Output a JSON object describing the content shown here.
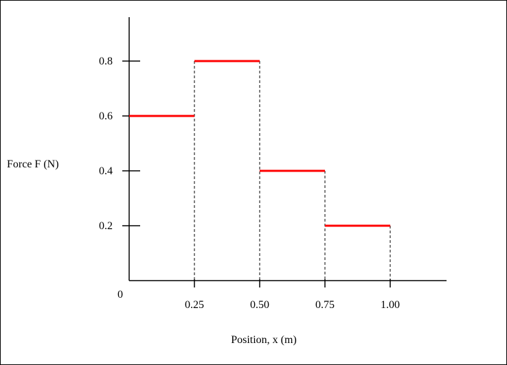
{
  "chart_data": {
    "type": "line",
    "subtype": "step",
    "title": "",
    "xlabel": "Position, x (m)",
    "ylabel": "Force F (N)",
    "origin_label": "0",
    "xlim": [
      0,
      1.2
    ],
    "ylim": [
      0,
      1.0
    ],
    "x_ticks": [
      {
        "value": 0.25,
        "label": "0.25"
      },
      {
        "value": 0.5,
        "label": "0.50"
      },
      {
        "value": 0.75,
        "label": "0.75"
      },
      {
        "value": 1.0,
        "label": "1.00"
      }
    ],
    "y_ticks": [
      {
        "value": 0.2,
        "label": "0.2"
      },
      {
        "value": 0.4,
        "label": "0.4"
      },
      {
        "value": 0.6,
        "label": "0.6"
      },
      {
        "value": 0.8,
        "label": "0.8"
      }
    ],
    "segments": [
      {
        "x_start": 0.0,
        "x_end": 0.25,
        "y": 0.6
      },
      {
        "x_start": 0.25,
        "x_end": 0.5,
        "y": 0.8
      },
      {
        "x_start": 0.5,
        "x_end": 0.75,
        "y": 0.4
      },
      {
        "x_start": 0.75,
        "x_end": 1.0,
        "y": 0.2
      }
    ],
    "grid": false,
    "colors": {
      "series": "#ff0000",
      "axes": "#000000",
      "guides": "#000000"
    }
  }
}
